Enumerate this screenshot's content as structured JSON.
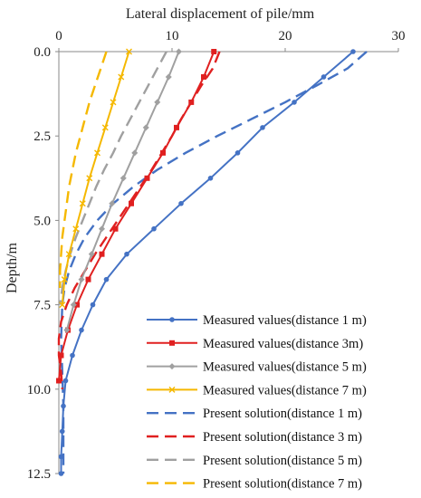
{
  "chart_data": {
    "type": "line",
    "xlabel": "Lateral displacement of pile/mm",
    "ylabel": "Depth/m",
    "x_ticks": [
      "0",
      "10",
      "20",
      "30"
    ],
    "y_ticks": [
      "0.0",
      "2.5",
      "5.0",
      "7.5",
      "10.0",
      "12.5"
    ],
    "xlim": [
      0,
      30
    ],
    "ylim": [
      12.5,
      0
    ],
    "x_axis_position": "top",
    "y_axis_inverted": true,
    "grid": false,
    "legend_position": "bottom-right",
    "series": [
      {
        "name": "Measured values(distance 1 m)",
        "style": "solid",
        "marker": "circle",
        "color": "#4472C4",
        "points": [
          [
            26,
            0
          ],
          [
            23.4,
            0.75
          ],
          [
            20.8,
            1.5
          ],
          [
            18,
            2.25
          ],
          [
            15.8,
            3
          ],
          [
            13.4,
            3.75
          ],
          [
            10.8,
            4.5
          ],
          [
            8.4,
            5.25
          ],
          [
            6,
            6
          ],
          [
            4.2,
            6.75
          ],
          [
            3,
            7.5
          ],
          [
            2,
            8.25
          ],
          [
            1.2,
            9
          ],
          [
            0.6,
            9.75
          ],
          [
            0.4,
            10.5
          ],
          [
            0.3,
            11.25
          ],
          [
            0.2,
            12
          ],
          [
            0.2,
            12.5
          ]
        ]
      },
      {
        "name": "Measured values(distance 3m)",
        "style": "solid",
        "marker": "square",
        "color": "#E02020",
        "points": [
          [
            13.7,
            0
          ],
          [
            12.8,
            0.75
          ],
          [
            11.7,
            1.5
          ],
          [
            10.4,
            2.25
          ],
          [
            9.2,
            3
          ],
          [
            7.8,
            3.75
          ],
          [
            6.4,
            4.5
          ],
          [
            5,
            5.25
          ],
          [
            3.8,
            6
          ],
          [
            2.6,
            6.75
          ],
          [
            1.6,
            7.5
          ],
          [
            0.8,
            8.25
          ],
          [
            0.2,
            9
          ],
          [
            0,
            9.75
          ]
        ]
      },
      {
        "name": "Measured values(distance 5 m)",
        "style": "solid",
        "marker": "diamond",
        "color": "#A0A0A0",
        "points": [
          [
            10.6,
            0
          ],
          [
            9.7,
            0.75
          ],
          [
            8.7,
            1.5
          ],
          [
            7.7,
            2.25
          ],
          [
            6.7,
            3
          ],
          [
            5.7,
            3.75
          ],
          [
            4.7,
            4.5
          ],
          [
            3.8,
            5.25
          ],
          [
            2.9,
            6
          ],
          [
            2,
            6.75
          ],
          [
            1.3,
            7.5
          ],
          [
            0.7,
            8.25
          ]
        ]
      },
      {
        "name": "Measured values(distance 7 m)",
        "style": "solid",
        "marker": "x",
        "color": "#F5B800",
        "points": [
          [
            6.2,
            0
          ],
          [
            5.5,
            0.75
          ],
          [
            4.8,
            1.5
          ],
          [
            4.1,
            2.25
          ],
          [
            3.4,
            3
          ],
          [
            2.7,
            3.75
          ],
          [
            2.1,
            4.5
          ],
          [
            1.5,
            5.25
          ],
          [
            0.9,
            6
          ],
          [
            0.5,
            6.75
          ],
          [
            0.3,
            7.5
          ]
        ]
      },
      {
        "name": "Present solution(distance 1 m)",
        "style": "dashed",
        "marker": "none",
        "color": "#4472C4",
        "points": [
          [
            27.2,
            0
          ],
          [
            25.5,
            0.5
          ],
          [
            22.8,
            1
          ],
          [
            20,
            1.5
          ],
          [
            17,
            2
          ],
          [
            14,
            2.5
          ],
          [
            11.2,
            3
          ],
          [
            8.7,
            3.5
          ],
          [
            6.6,
            4
          ],
          [
            4.8,
            4.5
          ],
          [
            3.4,
            5
          ],
          [
            2.3,
            5.5
          ],
          [
            1.5,
            6
          ],
          [
            0.9,
            6.5
          ],
          [
            0.5,
            7
          ],
          [
            0.3,
            7.5
          ],
          [
            0.2,
            8.5
          ],
          [
            0.3,
            9.5
          ],
          [
            0.4,
            10.5
          ],
          [
            0.4,
            11.5
          ],
          [
            0.4,
            12.5
          ]
        ]
      },
      {
        "name": "Present solution(distance 3 m)",
        "style": "dashed",
        "marker": "none",
        "color": "#E02020",
        "points": [
          [
            14.2,
            0
          ],
          [
            13.6,
            0.5
          ],
          [
            12.6,
            1
          ],
          [
            11.7,
            1.5
          ],
          [
            10.8,
            2
          ],
          [
            10,
            2.5
          ],
          [
            9.1,
            3
          ],
          [
            8.2,
            3.5
          ],
          [
            7.2,
            4
          ],
          [
            6.2,
            4.5
          ],
          [
            5.2,
            5
          ],
          [
            4.2,
            5.5
          ],
          [
            3.2,
            6
          ],
          [
            2.3,
            6.5
          ],
          [
            1.4,
            7
          ],
          [
            0.7,
            7.5
          ],
          [
            0.2,
            8
          ],
          [
            0,
            8.5
          ],
          [
            0,
            9
          ],
          [
            0.2,
            9.5
          ],
          [
            0.3,
            10
          ]
        ]
      },
      {
        "name": "Present solution(distance 5 m)",
        "style": "dashed",
        "marker": "none",
        "color": "#A0A0A0",
        "points": [
          [
            9.5,
            0
          ],
          [
            8.7,
            0.5
          ],
          [
            7.9,
            1
          ],
          [
            7.1,
            1.5
          ],
          [
            6.3,
            2
          ],
          [
            5.5,
            2.5
          ],
          [
            4.8,
            3
          ],
          [
            4,
            3.5
          ],
          [
            3.3,
            4
          ],
          [
            2.7,
            4.5
          ],
          [
            2.1,
            5
          ],
          [
            1.5,
            5.5
          ],
          [
            1,
            6
          ],
          [
            0.6,
            6.5
          ],
          [
            0.3,
            7
          ],
          [
            0.1,
            7.5
          ]
        ]
      },
      {
        "name": "Present solution(distance 7 m)",
        "style": "dashed",
        "marker": "none",
        "color": "#F5B800",
        "points": [
          [
            4.2,
            0
          ],
          [
            3.7,
            0.5
          ],
          [
            3.2,
            1
          ],
          [
            2.7,
            1.5
          ],
          [
            2.3,
            2
          ],
          [
            1.9,
            2.5
          ],
          [
            1.5,
            3
          ],
          [
            1.2,
            3.5
          ],
          [
            0.9,
            4
          ],
          [
            0.7,
            4.5
          ],
          [
            0.5,
            5
          ],
          [
            0.3,
            5.5
          ],
          [
            0.2,
            6
          ],
          [
            0.1,
            6.5
          ],
          [
            0.1,
            7
          ]
        ]
      }
    ]
  }
}
